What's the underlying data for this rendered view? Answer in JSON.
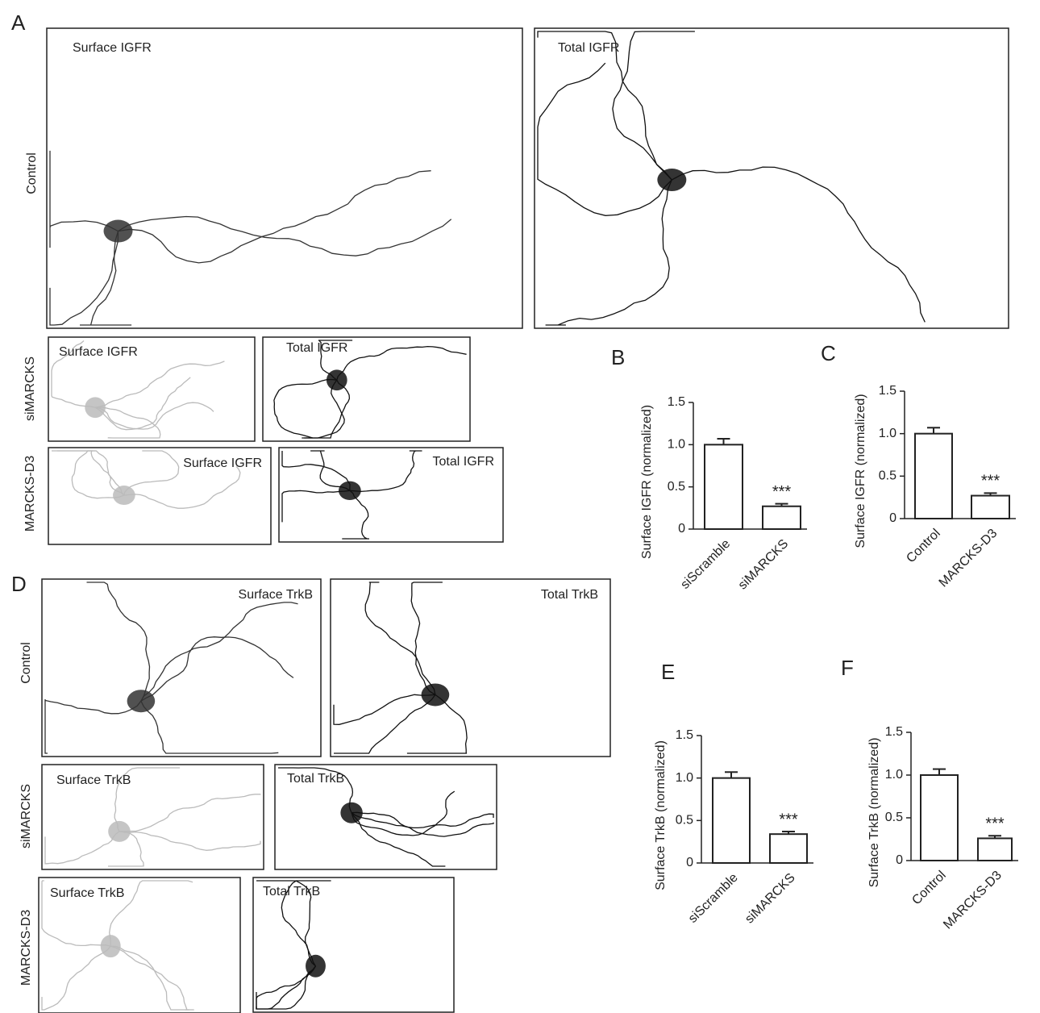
{
  "panels": [
    {
      "letter": "A",
      "rows": [
        {
          "label": "Control",
          "images": [
            {
              "label": "Surface IGFR"
            },
            {
              "label": "Total IGFR"
            }
          ]
        },
        {
          "label": "siMARCKS",
          "images": [
            {
              "label": "Surface IGFR"
            },
            {
              "label": "Total IGFR"
            }
          ]
        },
        {
          "label": "MARCKS-D3",
          "images": [
            {
              "label": "Surface IGFR"
            },
            {
              "label": "Total IGFR"
            }
          ]
        }
      ]
    },
    {
      "letter": "D",
      "rows": [
        {
          "label": "Control",
          "images": [
            {
              "label": "Surface TrkB"
            },
            {
              "label": "Total TrkB"
            }
          ]
        },
        {
          "label": "siMARCKS",
          "images": [
            {
              "label": "Surface TrkB"
            },
            {
              "label": "Total TrkB"
            }
          ]
        },
        {
          "label": "MARCKS-D3",
          "images": [
            {
              "label": "Surface TrkB"
            },
            {
              "label": "Total TrkB"
            }
          ]
        }
      ]
    }
  ],
  "chart_data": [
    {
      "type": "bar",
      "panel_label": "B",
      "ylabel": "Surface IGFR (normalized)",
      "categories": [
        "siScramble",
        "siMARCKS"
      ],
      "values": [
        1.0,
        0.27
      ],
      "errors": [
        0.07,
        0.03
      ],
      "annotation": "***",
      "color": "#ffffff",
      "ylim": [
        0,
        1.5
      ],
      "yticks": [
        0,
        0.5,
        {
          "value": 1,
          "label": "1.0"
        },
        1.5
      ]
    },
    {
      "type": "bar",
      "panel_label": "C",
      "ylabel": "Surface IGFR (normalized)",
      "categories": [
        "Control",
        "MARCKS-D3"
      ],
      "values": [
        1.0,
        0.27
      ],
      "errors": [
        0.07,
        0.03
      ],
      "annotation": "***",
      "color": "#ffffff",
      "ylim": [
        0,
        1.5
      ],
      "yticks": [
        0,
        0.5,
        {
          "value": 1,
          "label": "1.0"
        },
        1.5
      ]
    },
    {
      "type": "bar",
      "panel_label": "E",
      "ylabel": "Surface TrkB (normalized)",
      "categories": [
        "siScramble",
        "siMARCKS"
      ],
      "values": [
        1.0,
        0.34
      ],
      "errors": [
        0.07,
        0.03
      ],
      "annotation": "***",
      "color": "#ffffff",
      "ylim": [
        0,
        1.5
      ],
      "yticks": [
        0,
        0.5,
        {
          "value": 1,
          "label": "1.0"
        },
        1.5
      ]
    },
    {
      "type": "bar",
      "panel_label": "F",
      "ylabel": "Surface TrkB (normalized)",
      "categories": [
        "Control",
        "MARCKS-D3"
      ],
      "values": [
        1.0,
        0.26
      ],
      "errors": [
        0.07,
        0.03
      ],
      "annotation": "***",
      "color": "#ffffff",
      "ylim": [
        0,
        1.5
      ],
      "yticks": [
        0,
        0.5,
        {
          "value": 1,
          "label": "1.0"
        },
        1.5
      ]
    }
  ]
}
